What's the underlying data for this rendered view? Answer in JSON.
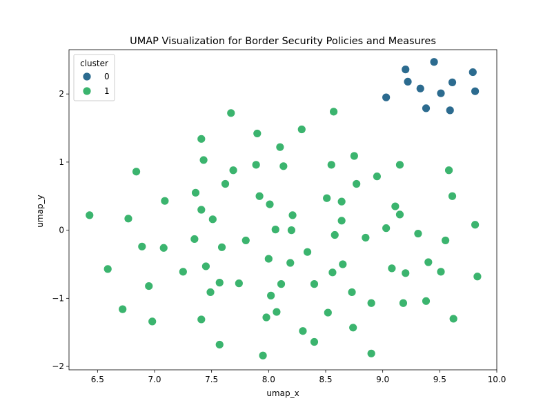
{
  "chart_data": {
    "type": "scatter",
    "title": "UMAP Visualization for Border Security Policies and Measures",
    "xlabel": "umap_x",
    "ylabel": "umap_y",
    "xlim": [
      6.25,
      10.0
    ],
    "ylim": [
      -2.05,
      2.65
    ],
    "xticks": [
      6.5,
      7.0,
      7.5,
      8.0,
      8.5,
      9.0,
      9.5,
      10.0
    ],
    "xtick_labels": [
      "6.5",
      "7.0",
      "7.5",
      "8.0",
      "8.5",
      "9.0",
      "9.5",
      "10.0"
    ],
    "yticks": [
      -2,
      -1,
      0,
      1,
      2
    ],
    "ytick_labels": [
      "−2",
      "−1",
      "0",
      "1",
      "2"
    ],
    "grid": false,
    "legend": {
      "title": "cluster",
      "position": "top-left",
      "entries": [
        {
          "label": "0",
          "color": "#2c6b8f"
        },
        {
          "label": "1",
          "color": "#3bb46e"
        }
      ]
    },
    "series": [
      {
        "name": "0",
        "color": "#2c6b8f",
        "points": [
          [
            9.2,
            2.36
          ],
          [
            9.45,
            2.47
          ],
          [
            9.79,
            2.32
          ],
          [
            9.22,
            2.18
          ],
          [
            9.61,
            2.17
          ],
          [
            9.33,
            2.08
          ],
          [
            9.51,
            2.01
          ],
          [
            9.81,
            2.04
          ],
          [
            9.03,
            1.95
          ],
          [
            9.38,
            1.79
          ],
          [
            9.59,
            1.76
          ]
        ]
      },
      {
        "name": "1",
        "color": "#3bb46e",
        "points": [
          [
            6.43,
            0.22
          ],
          [
            6.59,
            -0.57
          ],
          [
            6.72,
            -1.16
          ],
          [
            6.77,
            0.17
          ],
          [
            6.84,
            0.86
          ],
          [
            6.89,
            -0.24
          ],
          [
            6.95,
            -0.82
          ],
          [
            6.98,
            -1.34
          ],
          [
            7.08,
            -0.26
          ],
          [
            7.09,
            0.43
          ],
          [
            7.25,
            -0.61
          ],
          [
            7.35,
            -0.13
          ],
          [
            7.36,
            0.55
          ],
          [
            7.41,
            1.34
          ],
          [
            7.41,
            0.3
          ],
          [
            7.43,
            1.03
          ],
          [
            7.41,
            -1.31
          ],
          [
            7.45,
            -0.53
          ],
          [
            7.49,
            -0.91
          ],
          [
            7.51,
            0.16
          ],
          [
            7.57,
            -0.77
          ],
          [
            7.57,
            -1.68
          ],
          [
            7.59,
            -0.25
          ],
          [
            7.62,
            0.68
          ],
          [
            7.67,
            1.72
          ],
          [
            7.69,
            0.88
          ],
          [
            7.74,
            -0.78
          ],
          [
            7.8,
            -0.15
          ],
          [
            7.89,
            0.96
          ],
          [
            7.9,
            1.42
          ],
          [
            7.92,
            0.5
          ],
          [
            7.95,
            -1.84
          ],
          [
            7.98,
            -1.28
          ],
          [
            8.0,
            -0.42
          ],
          [
            8.01,
            0.38
          ],
          [
            8.02,
            -0.96
          ],
          [
            8.06,
            0.01
          ],
          [
            8.07,
            -1.2
          ],
          [
            8.1,
            1.22
          ],
          [
            8.11,
            -0.79
          ],
          [
            8.13,
            0.94
          ],
          [
            8.19,
            -0.48
          ],
          [
            8.2,
            0.0
          ],
          [
            8.21,
            0.22
          ],
          [
            8.29,
            1.48
          ],
          [
            8.3,
            -1.48
          ],
          [
            8.34,
            -0.32
          ],
          [
            8.4,
            -0.79
          ],
          [
            8.4,
            -1.64
          ],
          [
            8.51,
            0.47
          ],
          [
            8.52,
            -1.21
          ],
          [
            8.55,
            0.96
          ],
          [
            8.56,
            -0.62
          ],
          [
            8.57,
            1.74
          ],
          [
            8.58,
            -0.07
          ],
          [
            8.64,
            0.42
          ],
          [
            8.64,
            0.14
          ],
          [
            8.65,
            -0.5
          ],
          [
            8.73,
            -0.91
          ],
          [
            8.74,
            -1.43
          ],
          [
            8.75,
            1.09
          ],
          [
            8.77,
            0.68
          ],
          [
            8.85,
            -0.11
          ],
          [
            8.9,
            -1.07
          ],
          [
            8.9,
            -1.81
          ],
          [
            8.95,
            0.79
          ],
          [
            9.03,
            0.03
          ],
          [
            9.08,
            -0.56
          ],
          [
            9.11,
            0.35
          ],
          [
            9.15,
            0.96
          ],
          [
            9.15,
            0.23
          ],
          [
            9.18,
            -1.07
          ],
          [
            9.2,
            -0.63
          ],
          [
            9.31,
            -0.05
          ],
          [
            9.38,
            -1.04
          ],
          [
            9.4,
            -0.47
          ],
          [
            9.51,
            -0.61
          ],
          [
            9.55,
            -0.15
          ],
          [
            9.58,
            0.88
          ],
          [
            9.61,
            0.5
          ],
          [
            9.62,
            -1.3
          ],
          [
            9.81,
            0.08
          ],
          [
            9.83,
            -0.68
          ]
        ]
      }
    ]
  }
}
